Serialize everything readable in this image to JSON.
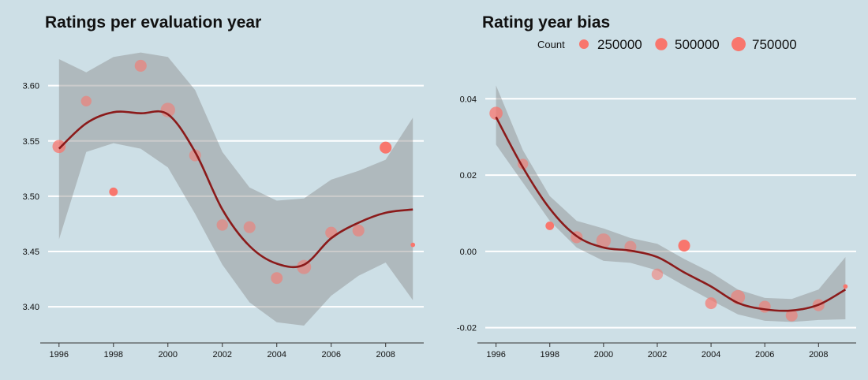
{
  "charts": {
    "left": {
      "title": "Ratings per evaluation year"
    },
    "right": {
      "title": "Rating year bias"
    }
  },
  "legend": {
    "title": "Count",
    "items": [
      {
        "label": "250000",
        "value": 250000
      },
      {
        "label": "500000",
        "value": 500000
      },
      {
        "label": "750000",
        "value": 750000
      }
    ]
  },
  "colors": {
    "point": "#f8766d",
    "smooth": "#8b1a1a",
    "band": "#8c8c8c",
    "background": "#cddfe6",
    "grid": "#ffffff"
  },
  "chart_data": [
    {
      "type": "scatter",
      "title": "Ratings per evaluation year",
      "xlabel": "",
      "ylabel": "",
      "xlim": [
        1995.6,
        2009.4
      ],
      "ylim": [
        3.368,
        3.634
      ],
      "xticks": [
        1996,
        1998,
        2000,
        2002,
        2004,
        2006,
        2008
      ],
      "xtick_labels": [
        "1996",
        "1998",
        "2000",
        "2002",
        "2004",
        "2006",
        "2008"
      ],
      "yticks": [
        3.4,
        3.45,
        3.5,
        3.55,
        3.6
      ],
      "ytick_labels": [
        "3.40",
        "3.45",
        "3.50",
        "3.55",
        "3.60"
      ],
      "grid": "horizontal",
      "points": [
        {
          "x": 1996,
          "y": 3.545,
          "count": 620000,
          "alpha": 0.75
        },
        {
          "x": 1997,
          "y": 3.586,
          "count": 340000,
          "alpha": 0.6
        },
        {
          "x": 1998,
          "y": 3.504,
          "count": 180000,
          "alpha": 1.0
        },
        {
          "x": 1999,
          "y": 3.618,
          "count": 480000,
          "alpha": 0.6
        },
        {
          "x": 2000,
          "y": 3.578,
          "count": 800000,
          "alpha": 0.55
        },
        {
          "x": 2001,
          "y": 3.537,
          "count": 470000,
          "alpha": 0.55
        },
        {
          "x": 2002,
          "y": 3.474,
          "count": 420000,
          "alpha": 0.55
        },
        {
          "x": 2003,
          "y": 3.472,
          "count": 470000,
          "alpha": 0.55
        },
        {
          "x": 2004,
          "y": 3.426,
          "count": 460000,
          "alpha": 0.6
        },
        {
          "x": 2005,
          "y": 3.436,
          "count": 760000,
          "alpha": 0.55
        },
        {
          "x": 2006,
          "y": 3.467,
          "count": 470000,
          "alpha": 0.6
        },
        {
          "x": 2007,
          "y": 3.469,
          "count": 470000,
          "alpha": 0.6
        },
        {
          "x": 2008,
          "y": 3.544,
          "count": 480000,
          "alpha": 1.0
        },
        {
          "x": 2009,
          "y": 3.456,
          "count": 12000,
          "alpha": 1.0
        }
      ],
      "smooth": {
        "x": [
          1996,
          1997,
          1998,
          1999,
          2000,
          2001,
          2002,
          2003,
          2004,
          2005,
          2006,
          2007,
          2008,
          2009
        ],
        "y": [
          3.543,
          3.566,
          3.576,
          3.575,
          3.574,
          3.54,
          3.488,
          3.455,
          3.439,
          3.438,
          3.462,
          3.476,
          3.485,
          3.488
        ],
        "lower": [
          3.461,
          3.54,
          3.548,
          3.543,
          3.526,
          3.484,
          3.438,
          3.404,
          3.386,
          3.383,
          3.41,
          3.428,
          3.44,
          3.406
        ],
        "upper": [
          3.624,
          3.612,
          3.626,
          3.63,
          3.626,
          3.596,
          3.54,
          3.508,
          3.496,
          3.498,
          3.515,
          3.523,
          3.533,
          3.571
        ]
      }
    },
    {
      "type": "scatter",
      "title": "Rating year bias",
      "xlabel": "",
      "ylabel": "",
      "xlim": [
        1995.6,
        2009.4
      ],
      "ylim": [
        -0.0238,
        0.0444
      ],
      "xticks": [
        1996,
        1998,
        2000,
        2002,
        2004,
        2006,
        2008
      ],
      "xtick_labels": [
        "1996",
        "1998",
        "2000",
        "2002",
        "2004",
        "2006",
        "2008"
      ],
      "yticks": [
        -0.02,
        0.0,
        0.02,
        0.04
      ],
      "ytick_labels": [
        "-0.02",
        "0.00",
        "0.02",
        "0.04"
      ],
      "grid": "horizontal",
      "legend_position": "top",
      "points": [
        {
          "x": 1996,
          "y": 0.0362,
          "count": 620000,
          "alpha": 0.75
        },
        {
          "x": 1997,
          "y": 0.0229,
          "count": 340000,
          "alpha": 0.6
        },
        {
          "x": 1998,
          "y": 0.0067,
          "count": 180000,
          "alpha": 1.0
        },
        {
          "x": 1999,
          "y": 0.0037,
          "count": 480000,
          "alpha": 0.6
        },
        {
          "x": 2000,
          "y": 0.0028,
          "count": 800000,
          "alpha": 0.55
        },
        {
          "x": 2001,
          "y": 0.0012,
          "count": 470000,
          "alpha": 0.55
        },
        {
          "x": 2002,
          "y": -0.006,
          "count": 420000,
          "alpha": 0.55
        },
        {
          "x": 2003,
          "y": 0.0015,
          "count": 470000,
          "alpha": 1.0
        },
        {
          "x": 2004,
          "y": -0.0136,
          "count": 460000,
          "alpha": 0.7
        },
        {
          "x": 2005,
          "y": -0.012,
          "count": 760000,
          "alpha": 0.6
        },
        {
          "x": 2006,
          "y": -0.0145,
          "count": 470000,
          "alpha": 0.6
        },
        {
          "x": 2007,
          "y": -0.0168,
          "count": 470000,
          "alpha": 0.6
        },
        {
          "x": 2008,
          "y": -0.0141,
          "count": 480000,
          "alpha": 0.6
        },
        {
          "x": 2009,
          "y": -0.0092,
          "count": 12000,
          "alpha": 1.0
        }
      ],
      "smooth": {
        "x": [
          1996,
          1997,
          1998,
          1999,
          2000,
          2001,
          2002,
          2003,
          2004,
          2005,
          2006,
          2007,
          2008,
          2009
        ],
        "y": [
          0.0352,
          0.022,
          0.0112,
          0.004,
          0.001,
          0.0002,
          -0.0015,
          -0.0055,
          -0.0092,
          -0.0135,
          -0.0152,
          -0.0155,
          -0.014,
          -0.01
        ],
        "lower": [
          0.028,
          0.018,
          0.008,
          0.001,
          -0.0025,
          -0.003,
          -0.005,
          -0.009,
          -0.0128,
          -0.0165,
          -0.0182,
          -0.0185,
          -0.018,
          -0.0178
        ],
        "upper": [
          0.0435,
          0.0265,
          0.0145,
          0.008,
          0.006,
          0.0035,
          0.002,
          -0.002,
          -0.0055,
          -0.01,
          -0.0122,
          -0.0125,
          -0.01,
          -0.0015
        ]
      }
    }
  ]
}
